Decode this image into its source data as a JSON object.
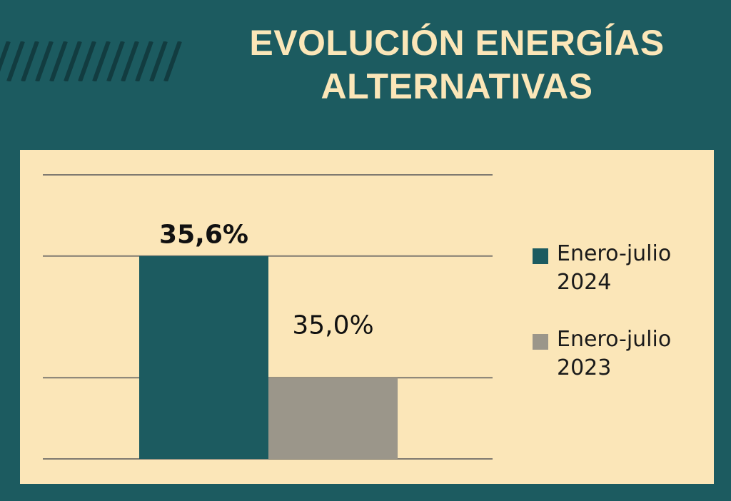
{
  "title": {
    "line1": "EVOLUCIÓN ENERGÍAS",
    "line2": "ALTERNATIVAS"
  },
  "colors": {
    "background": "#1c5b60",
    "panel": "#fbe6b8",
    "title_text": "#fbe6b8",
    "series_2024": "#1c5b60",
    "series_2023": "#9b968a",
    "gridline": "#7f7a70"
  },
  "chart_data": {
    "type": "bar",
    "title": "EVOLUCIÓN ENERGÍAS ALTERNATIVAS",
    "categories": [
      ""
    ],
    "series": [
      {
        "name": "Enero-julio 2024",
        "values": [
          35.6
        ],
        "label": "35,6%",
        "color": "#1c5b60"
      },
      {
        "name": "Enero-julio 2023",
        "values": [
          35.0
        ],
        "label": "35,0%",
        "color": "#9b968a"
      }
    ],
    "ylim": [
      34.6,
      36.0
    ],
    "gridlines": [
      34.6,
      35.0,
      35.6,
      36.0
    ],
    "xlabel": "",
    "ylabel": "",
    "legend_position": "right"
  }
}
